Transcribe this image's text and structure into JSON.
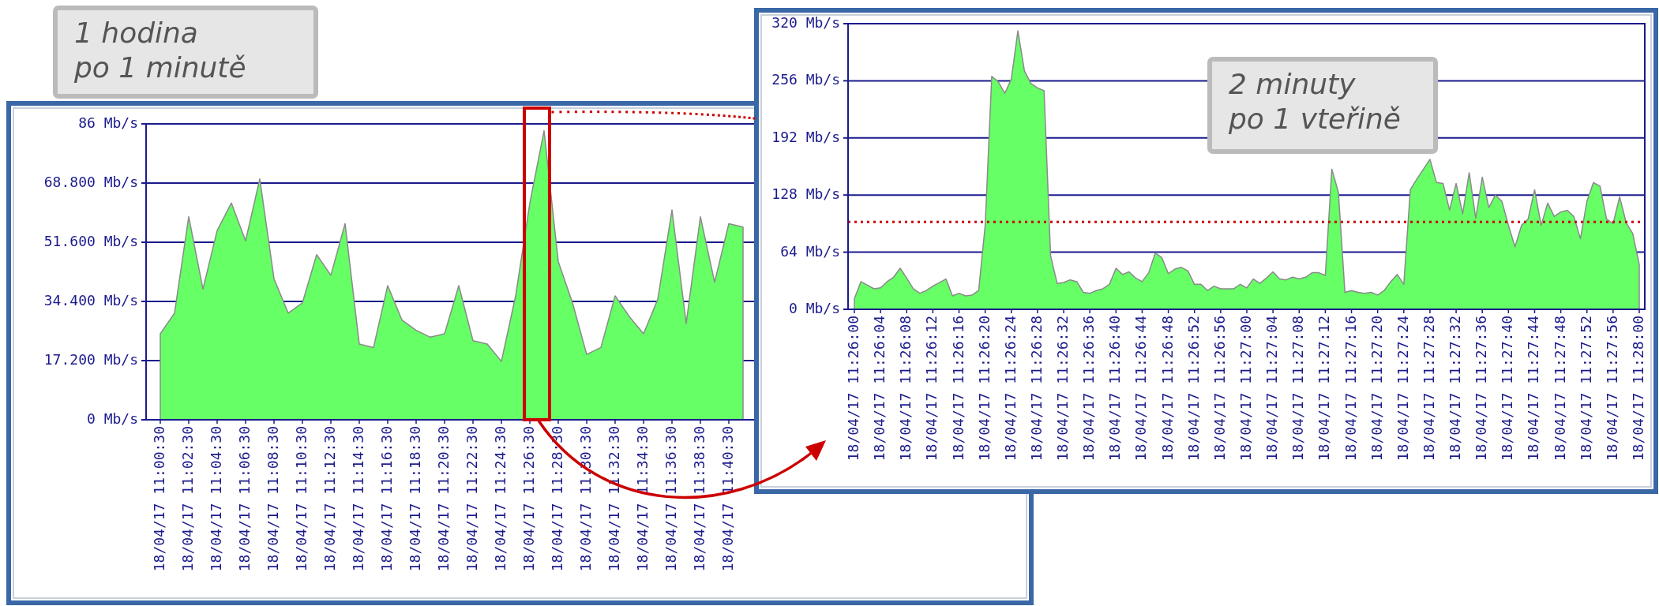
{
  "chart_data": [
    {
      "type": "area",
      "categories": [
        "18/04/17 11:00:30",
        null,
        "18/04/17 11:02:30",
        null,
        "18/04/17 11:04:30",
        null,
        "18/04/17 11:06:30",
        null,
        "18/04/17 11:08:30",
        null,
        "18/04/17 11:10:30",
        null,
        "18/04/17 11:12:30",
        null,
        "18/04/17 11:14:30",
        null,
        "18/04/17 11:16:30",
        null,
        "18/04/17 11:18:30",
        null,
        "18/04/17 11:20:30",
        null,
        "18/04/17 11:22:30",
        null,
        "18/04/17 11:24:30",
        null,
        "18/04/17 11:26:30",
        null,
        "18/04/17 11:28:30",
        null,
        "18/04/17 11:30:30",
        null,
        "18/04/17 11:32:30",
        null,
        "18/04/17 11:34:30",
        null,
        "18/04/17 11:36:30",
        null,
        "18/04/17 11:38:30",
        null,
        "18/04/17 11:40:30",
        null,
        null,
        null,
        null,
        null,
        null,
        null,
        null,
        null,
        null,
        null,
        null,
        null,
        null,
        null,
        null,
        null,
        null,
        null
      ],
      "series": [
        {
          "color": "#66ff66",
          "values": [
            25,
            31,
            59,
            38,
            55,
            63,
            52,
            70,
            41,
            31,
            34,
            48,
            42,
            57,
            22,
            21,
            39,
            29,
            26,
            24,
            25,
            39,
            23,
            22,
            17,
            36,
            63,
            84,
            46,
            34,
            19,
            21,
            36,
            30,
            25,
            35,
            61,
            28,
            59,
            40,
            57,
            56,
            null,
            null,
            null,
            null,
            null,
            null,
            null,
            null,
            null,
            null,
            null,
            null,
            null,
            null,
            null,
            null,
            null,
            null
          ]
        }
      ],
      "ylim": [
        0,
        86
      ],
      "yticks": [
        {
          "value": 0,
          "label": "0 Mb/s"
        },
        {
          "value": 17.2,
          "label": "17.200 Mb/s"
        },
        {
          "value": 34.4,
          "label": "34.400 Mb/s"
        },
        {
          "value": 51.6,
          "label": "51.600 Mb/s"
        },
        {
          "value": 68.8,
          "label": "68.800 Mb/s"
        },
        {
          "value": 86,
          "label": "86 Mb/s"
        }
      ],
      "grid": "y",
      "annotations": [
        "1 hodina\npo 1 minutě"
      ]
    },
    {
      "type": "area",
      "categories": [
        "18/04/17 11:26:00",
        null,
        null,
        null,
        "18/04/17 11:26:04",
        null,
        null,
        null,
        "18/04/17 11:26:08",
        null,
        null,
        null,
        "18/04/17 11:26:12",
        null,
        null,
        null,
        "18/04/17 11:26:16",
        null,
        null,
        null,
        "18/04/17 11:26:20",
        null,
        null,
        null,
        "18/04/17 11:26:24",
        null,
        null,
        null,
        "18/04/17 11:26:28",
        null,
        null,
        null,
        "18/04/17 11:26:32",
        null,
        null,
        null,
        "18/04/17 11:26:36",
        null,
        null,
        null,
        "18/04/17 11:26:40",
        null,
        null,
        null,
        "18/04/17 11:26:44",
        null,
        null,
        null,
        "18/04/17 11:26:48",
        null,
        null,
        null,
        "18/04/17 11:26:52",
        null,
        null,
        null,
        "18/04/17 11:26:56",
        null,
        null,
        null,
        "18/04/17 11:27:00",
        null,
        null,
        null,
        "18/04/17 11:27:04",
        null,
        null,
        null,
        "18/04/17 11:27:08",
        null,
        null,
        null,
        "18/04/17 11:27:12",
        null,
        null,
        null,
        "18/04/17 11:27:16",
        null,
        null,
        null,
        "18/04/17 11:27:20",
        null,
        null,
        null,
        "18/04/17 11:27:24",
        null,
        null,
        null,
        "18/04/17 11:27:28",
        null,
        null,
        null,
        "18/04/17 11:27:32",
        null,
        null,
        null,
        "18/04/17 11:27:36",
        null,
        null,
        null,
        "18/04/17 11:27:40",
        null,
        null,
        null,
        "18/04/17 11:27:44",
        null,
        null,
        null,
        "18/04/17 11:27:48",
        null,
        null,
        null,
        "18/04/17 11:27:52",
        null,
        null,
        null,
        "18/04/17 11:27:56",
        null,
        null,
        null,
        "18/04/17 11:28:00"
      ],
      "series": [
        {
          "color": "#66ff66",
          "values": [
            12,
            31,
            27,
            23,
            24,
            31,
            36,
            46,
            35,
            23,
            18,
            21,
            26,
            30,
            34,
            15,
            18,
            15,
            16,
            21,
            94,
            261,
            255,
            242,
            258,
            312,
            267,
            253,
            248,
            245,
            60,
            29,
            30,
            33,
            31,
            19,
            18,
            21,
            23,
            28,
            46,
            39,
            42,
            35,
            31,
            41,
            63,
            58,
            40,
            45,
            47,
            43,
            28,
            28,
            21,
            26,
            23,
            23,
            23,
            28,
            24,
            34,
            29,
            35,
            42,
            34,
            33,
            36,
            34,
            36,
            41,
            41,
            38,
            157,
            131,
            19,
            21,
            19,
            18,
            19,
            16,
            21,
            31,
            39,
            28,
            134,
            146,
            157,
            168,
            142,
            141,
            111,
            141,
            107,
            153,
            102,
            148,
            114,
            128,
            121,
            94,
            70,
            94,
            101,
            134,
            94,
            119,
            104,
            109,
            111,
            104,
            79,
            121,
            142,
            138,
            101,
            96,
            126,
            97,
            85,
            50
          ]
        }
      ],
      "ylim": [
        0,
        320
      ],
      "yticks": [
        {
          "value": 0,
          "label": "0 Mb/s"
        },
        {
          "value": 64,
          "label": "64 Mb/s"
        },
        {
          "value": 128,
          "label": "128 Mb/s"
        },
        {
          "value": 192,
          "label": "192 Mb/s"
        },
        {
          "value": 256,
          "label": "256 Mb/s"
        },
        {
          "value": 320,
          "label": "320 Mb/s"
        }
      ],
      "grid": "y",
      "ref_lines": [
        {
          "axis": "y",
          "value": 98,
          "color": "#cc0000",
          "line_style": "dotted"
        }
      ],
      "annotations": [
        "2 minuty\npo 1 vteřině"
      ]
    }
  ]
}
